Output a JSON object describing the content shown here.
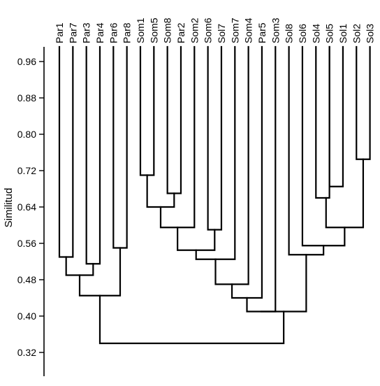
{
  "chart_data": {
    "type": "dendrogram",
    "ylabel": "Similitud",
    "ylim": [
      0.27,
      1.0
    ],
    "yticks": [
      "0.96",
      "0.88",
      "0.80",
      "0.72",
      "0.64",
      "0.56",
      "0.48",
      "0.40",
      "0.32"
    ],
    "leaves": [
      "Par1",
      "Par7",
      "Par3",
      "Par4",
      "Par6",
      "Par8",
      "Som1",
      "Som5",
      "Som8",
      "Par2",
      "Som2",
      "Som6",
      "Sol7",
      "Som7",
      "Som4",
      "Par5",
      "Som3",
      "Sol8",
      "Sol6",
      "Sol4",
      "Sol5",
      "Sol1",
      "Sol2",
      "Sol3"
    ],
    "merges": [
      {
        "a": "Par1",
        "b": "Par7",
        "sim": 0.53
      },
      {
        "a": "Par3",
        "b": "Par4",
        "sim": 0.515
      },
      {
        "a": "(Par1,Par7)",
        "b": "(Par3,Par4)",
        "sim": 0.49
      },
      {
        "a": "Par6",
        "b": "Par8",
        "sim": 0.55
      },
      {
        "a": "((Par1,Par7),(Par3,Par4))",
        "b": "(Par6,Par8)",
        "sim": 0.445
      },
      {
        "a": "Som1",
        "b": "Som5",
        "sim": 0.71
      },
      {
        "a": "Som8",
        "b": "Par2",
        "sim": 0.67
      },
      {
        "a": "(Som1,Som5)",
        "b": "(Som8,Par2)",
        "sim": 0.64
      },
      {
        "a": "((Som1,Som5),(Som8,Par2))",
        "b": "Som2",
        "sim": 0.595
      },
      {
        "a": "Som6",
        "b": "Sol7",
        "sim": 0.59
      },
      {
        "a": "(Som1..Som2)",
        "b": "(Som6,Sol7)",
        "sim": 0.545
      },
      {
        "a": "(Som1..Sol7)",
        "b": "Som7",
        "sim": 0.525
      },
      {
        "a": "(Som1..Som7)",
        "b": "Som4",
        "sim": 0.47
      },
      {
        "a": "(Som1..Som4)",
        "b": "Par5",
        "sim": 0.44
      },
      {
        "a": "(Som1..Par5)",
        "b": "Som3",
        "sim": 0.41
      },
      {
        "a": "Sol4",
        "b": "Sol5",
        "sim": 0.66
      },
      {
        "a": "Sol5'",
        "b": "Sol1",
        "sim": 0.685
      },
      {
        "a": "Sol2",
        "b": "Sol3",
        "sim": 0.745
      },
      {
        "a": "(Sol4,Sol5,Sol1)",
        "b": "(Sol2,Sol3)",
        "sim": 0.595
      },
      {
        "a": "Sol6",
        "b": "(Sol4..Sol3)",
        "sim": 0.555
      },
      {
        "a": "Sol8",
        "b": "(Sol6..Sol3)",
        "sim": 0.535
      },
      {
        "a": "(Som1..Som3)",
        "b": "(Sol8..Sol3)",
        "sim": 0.41
      },
      {
        "a": "(Par1..Par8)",
        "b": "(Som1..Sol3)",
        "sim": 0.34
      }
    ],
    "grid": false,
    "legend": "none"
  }
}
